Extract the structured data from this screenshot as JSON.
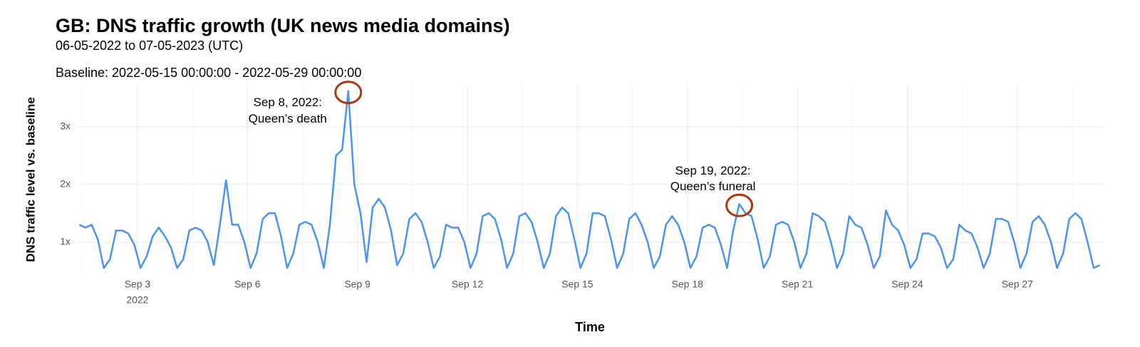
{
  "chart_data": {
    "type": "line",
    "title": "GB: DNS traffic growth (UK news media domains)",
    "subtitle": "06-05-2022 to 07-05-2023 (UTC)",
    "caption": "Baseline: 2022-05-15 00:00:00 - 2022-05-29 00:00:00",
    "x_label": "Time",
    "y_label": "DNS traffic level vs. baseline",
    "grid": true,
    "xlim": [
      "2022-09-01T07:00",
      "2022-09-29T09:00"
    ],
    "ylim": [
      0.44,
      3.74
    ],
    "yticks": [
      {
        "value": 1,
        "label": "1x"
      },
      {
        "value": 2,
        "label": "2x"
      },
      {
        "value": 3,
        "label": "3x"
      }
    ],
    "xticks": [
      {
        "value": "2022-09-03T00:00",
        "label": "Sep 3",
        "sublabel": "2022"
      },
      {
        "value": "2022-09-06T00:00",
        "label": "Sep 6"
      },
      {
        "value": "2022-09-09T00:00",
        "label": "Sep 9"
      },
      {
        "value": "2022-09-12T00:00",
        "label": "Sep 12"
      },
      {
        "value": "2022-09-15T00:00",
        "label": "Sep 15"
      },
      {
        "value": "2022-09-18T00:00",
        "label": "Sep 18"
      },
      {
        "value": "2022-09-21T00:00",
        "label": "Sep 21"
      },
      {
        "value": "2022-09-24T00:00",
        "label": "Sep 24"
      },
      {
        "value": "2022-09-27T00:00",
        "label": "Sep 27"
      }
    ],
    "annotations": [
      {
        "lines": [
          "Sep 8, 2022:",
          "Queen’s death"
        ],
        "x": "2022-09-08T18:00",
        "y": 3.62,
        "color": "#a8380f"
      },
      {
        "lines": [
          "Sep 19, 2022:",
          "Queen’s funeral"
        ],
        "x": "2022-09-19T10:00",
        "y": 1.66,
        "color": "#a8380f"
      }
    ],
    "series": [
      {
        "name": "GB",
        "color": "#4a94ee",
        "x": [
          "2022-09-01T10:00",
          "2022-09-01T14:00",
          "2022-09-01T18:00",
          "2022-09-01T22:00",
          "2022-09-02T02:00",
          "2022-09-02T06:00",
          "2022-09-02T10:00",
          "2022-09-02T14:00",
          "2022-09-02T18:00",
          "2022-09-02T22:00",
          "2022-09-03T02:00",
          "2022-09-03T06:00",
          "2022-09-03T10:00",
          "2022-09-03T14:00",
          "2022-09-03T18:00",
          "2022-09-03T22:00",
          "2022-09-04T02:00",
          "2022-09-04T06:00",
          "2022-09-04T10:00",
          "2022-09-04T14:00",
          "2022-09-04T18:00",
          "2022-09-04T22:00",
          "2022-09-05T02:00",
          "2022-09-05T06:00",
          "2022-09-05T10:00",
          "2022-09-05T14:00",
          "2022-09-05T18:00",
          "2022-09-05T22:00",
          "2022-09-06T02:00",
          "2022-09-06T06:00",
          "2022-09-06T10:00",
          "2022-09-06T14:00",
          "2022-09-06T18:00",
          "2022-09-06T22:00",
          "2022-09-07T02:00",
          "2022-09-07T06:00",
          "2022-09-07T10:00",
          "2022-09-07T14:00",
          "2022-09-07T18:00",
          "2022-09-07T22:00",
          "2022-09-08T02:00",
          "2022-09-08T06:00",
          "2022-09-08T10:00",
          "2022-09-08T14:00",
          "2022-09-08T18:00",
          "2022-09-08T22:00",
          "2022-09-09T02:00",
          "2022-09-09T06:00",
          "2022-09-09T10:00",
          "2022-09-09T14:00",
          "2022-09-09T18:00",
          "2022-09-09T22:00",
          "2022-09-10T02:00",
          "2022-09-10T06:00",
          "2022-09-10T10:00",
          "2022-09-10T14:00",
          "2022-09-10T18:00",
          "2022-09-10T22:00",
          "2022-09-11T02:00",
          "2022-09-11T06:00",
          "2022-09-11T10:00",
          "2022-09-11T14:00",
          "2022-09-11T18:00",
          "2022-09-11T22:00",
          "2022-09-12T02:00",
          "2022-09-12T06:00",
          "2022-09-12T10:00",
          "2022-09-12T14:00",
          "2022-09-12T18:00",
          "2022-09-12T22:00",
          "2022-09-13T02:00",
          "2022-09-13T06:00",
          "2022-09-13T10:00",
          "2022-09-13T14:00",
          "2022-09-13T18:00",
          "2022-09-13T22:00",
          "2022-09-14T02:00",
          "2022-09-14T06:00",
          "2022-09-14T10:00",
          "2022-09-14T14:00",
          "2022-09-14T18:00",
          "2022-09-14T22:00",
          "2022-09-15T02:00",
          "2022-09-15T06:00",
          "2022-09-15T10:00",
          "2022-09-15T14:00",
          "2022-09-15T18:00",
          "2022-09-15T22:00",
          "2022-09-16T02:00",
          "2022-09-16T06:00",
          "2022-09-16T10:00",
          "2022-09-16T14:00",
          "2022-09-16T18:00",
          "2022-09-16T22:00",
          "2022-09-17T02:00",
          "2022-09-17T06:00",
          "2022-09-17T10:00",
          "2022-09-17T14:00",
          "2022-09-17T18:00",
          "2022-09-17T22:00",
          "2022-09-18T02:00",
          "2022-09-18T06:00",
          "2022-09-18T10:00",
          "2022-09-18T14:00",
          "2022-09-18T18:00",
          "2022-09-18T22:00",
          "2022-09-19T02:00",
          "2022-09-19T06:00",
          "2022-09-19T10:00",
          "2022-09-19T14:00",
          "2022-09-19T18:00",
          "2022-09-19T22:00",
          "2022-09-20T02:00",
          "2022-09-20T06:00",
          "2022-09-20T10:00",
          "2022-09-20T14:00",
          "2022-09-20T18:00",
          "2022-09-20T22:00",
          "2022-09-21T02:00",
          "2022-09-21T06:00",
          "2022-09-21T10:00",
          "2022-09-21T14:00",
          "2022-09-21T18:00",
          "2022-09-21T22:00",
          "2022-09-22T02:00",
          "2022-09-22T06:00",
          "2022-09-22T10:00",
          "2022-09-22T14:00",
          "2022-09-22T18:00",
          "2022-09-22T22:00",
          "2022-09-23T02:00",
          "2022-09-23T06:00",
          "2022-09-23T10:00",
          "2022-09-23T14:00",
          "2022-09-23T18:00",
          "2022-09-23T22:00",
          "2022-09-24T02:00",
          "2022-09-24T06:00",
          "2022-09-24T10:00",
          "2022-09-24T14:00",
          "2022-09-24T18:00",
          "2022-09-24T22:00",
          "2022-09-25T02:00",
          "2022-09-25T06:00",
          "2022-09-25T10:00",
          "2022-09-25T14:00",
          "2022-09-25T18:00",
          "2022-09-25T22:00",
          "2022-09-26T02:00",
          "2022-09-26T06:00",
          "2022-09-26T10:00",
          "2022-09-26T14:00",
          "2022-09-26T18:00",
          "2022-09-26T22:00",
          "2022-09-27T02:00",
          "2022-09-27T06:00",
          "2022-09-27T10:00",
          "2022-09-27T14:00",
          "2022-09-27T18:00",
          "2022-09-27T22:00",
          "2022-09-28T02:00",
          "2022-09-28T06:00",
          "2022-09-28T10:00",
          "2022-09-28T14:00",
          "2022-09-28T18:00",
          "2022-09-28T22:00",
          "2022-09-29T02:00",
          "2022-09-29T06:00"
        ],
        "values": [
          1.3,
          1.25,
          1.3,
          1.05,
          0.55,
          0.7,
          1.2,
          1.2,
          1.15,
          0.95,
          0.55,
          0.75,
          1.1,
          1.25,
          1.1,
          0.9,
          0.55,
          0.7,
          1.2,
          1.25,
          1.2,
          1.0,
          0.6,
          1.3,
          2.07,
          1.3,
          1.3,
          1.0,
          0.55,
          0.8,
          1.4,
          1.5,
          1.5,
          1.1,
          0.55,
          0.8,
          1.3,
          1.35,
          1.3,
          1.0,
          0.55,
          1.3,
          2.5,
          2.6,
          3.62,
          2.0,
          1.5,
          0.65,
          1.6,
          1.75,
          1.6,
          1.2,
          0.6,
          0.8,
          1.4,
          1.5,
          1.35,
          1.0,
          0.55,
          0.75,
          1.3,
          1.25,
          1.25,
          1.0,
          0.55,
          0.8,
          1.45,
          1.5,
          1.4,
          1.05,
          0.55,
          0.8,
          1.45,
          1.5,
          1.35,
          1.0,
          0.55,
          0.8,
          1.45,
          1.6,
          1.5,
          1.05,
          0.55,
          0.8,
          1.5,
          1.5,
          1.45,
          1.05,
          0.55,
          0.8,
          1.4,
          1.5,
          1.3,
          1.0,
          0.55,
          0.75,
          1.3,
          1.45,
          1.3,
          1.0,
          0.55,
          0.75,
          1.25,
          1.3,
          1.25,
          0.95,
          0.55,
          1.2,
          1.66,
          1.5,
          1.45,
          1.05,
          0.55,
          0.75,
          1.3,
          1.35,
          1.3,
          1.0,
          0.55,
          0.8,
          1.5,
          1.45,
          1.35,
          1.0,
          0.55,
          0.8,
          1.45,
          1.3,
          1.25,
          0.95,
          0.55,
          0.75,
          1.55,
          1.3,
          1.2,
          0.95,
          0.55,
          0.7,
          1.15,
          1.15,
          1.1,
          0.9,
          0.55,
          0.7,
          1.3,
          1.2,
          1.15,
          0.9,
          0.55,
          0.8,
          1.4,
          1.4,
          1.35,
          1.0,
          0.55,
          0.8,
          1.35,
          1.45,
          1.3,
          1.0,
          0.55,
          0.8,
          1.4,
          1.5,
          1.4,
          1.0,
          0.55,
          0.6
        ]
      }
    ]
  }
}
